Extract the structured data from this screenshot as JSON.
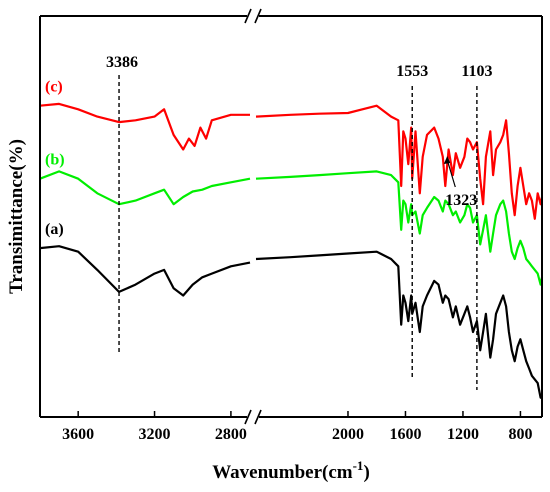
{
  "chart_data": {
    "type": "line",
    "xlabel_main": "Wavenumber(cm",
    "xlabel_sup": "-1",
    "xlabel_close": ")",
    "ylabel": "Transimittance(%)",
    "x_reversed": true,
    "x_break": [
      2700,
      2640
    ],
    "segments": [
      [
        3800,
        2700
      ],
      [
        2640,
        650
      ]
    ],
    "xticks": [
      3600,
      3200,
      2800,
      2000,
      1600,
      1200,
      800
    ],
    "ylim": [
      0,
      100
    ],
    "grid": false,
    "annotations": [
      {
        "text": "3386",
        "x": 3386
      },
      {
        "text": "1553",
        "x": 1553
      },
      {
        "text": "1103",
        "x": 1103
      },
      {
        "text": "1323",
        "x": 1323
      }
    ],
    "series": [
      {
        "name": "(c)",
        "color": "#ff0000",
        "points": [
          [
            3800,
            82
          ],
          [
            3700,
            82.5
          ],
          [
            3600,
            81
          ],
          [
            3500,
            79
          ],
          [
            3386,
            77.5
          ],
          [
            3300,
            78
          ],
          [
            3200,
            79
          ],
          [
            3150,
            81
          ],
          [
            3100,
            74
          ],
          [
            3050,
            70
          ],
          [
            3020,
            73
          ],
          [
            2990,
            71
          ],
          [
            2960,
            76
          ],
          [
            2930,
            73
          ],
          [
            2900,
            78
          ],
          [
            2800,
            79.5
          ],
          [
            2700,
            79.5
          ],
          [
            2640,
            79
          ],
          [
            2400,
            79.5
          ],
          [
            2200,
            79.8
          ],
          [
            2000,
            80
          ],
          [
            1900,
            81
          ],
          [
            1800,
            82
          ],
          [
            1700,
            79
          ],
          [
            1650,
            78
          ],
          [
            1630,
            60
          ],
          [
            1615,
            75
          ],
          [
            1600,
            73
          ],
          [
            1580,
            66
          ],
          [
            1560,
            76
          ],
          [
            1553,
            62
          ],
          [
            1530,
            75
          ],
          [
            1500,
            58
          ],
          [
            1480,
            68
          ],
          [
            1450,
            74
          ],
          [
            1400,
            76
          ],
          [
            1370,
            73
          ],
          [
            1340,
            68
          ],
          [
            1323,
            60
          ],
          [
            1300,
            70
          ],
          [
            1270,
            63
          ],
          [
            1250,
            69
          ],
          [
            1220,
            65
          ],
          [
            1190,
            68
          ],
          [
            1170,
            73
          ],
          [
            1150,
            72
          ],
          [
            1130,
            70
          ],
          [
            1103,
            72
          ],
          [
            1080,
            62
          ],
          [
            1060,
            55
          ],
          [
            1040,
            68
          ],
          [
            1010,
            75
          ],
          [
            990,
            63
          ],
          [
            970,
            70
          ],
          [
            940,
            72
          ],
          [
            920,
            74
          ],
          [
            900,
            78
          ],
          [
            880,
            69
          ],
          [
            860,
            58
          ],
          [
            840,
            52
          ],
          [
            820,
            60
          ],
          [
            800,
            65
          ],
          [
            780,
            60
          ],
          [
            760,
            55
          ],
          [
            740,
            58
          ],
          [
            720,
            56
          ],
          [
            700,
            51
          ],
          [
            680,
            58
          ],
          [
            660,
            55
          ],
          [
            650,
            57
          ]
        ]
      },
      {
        "name": "(b)",
        "color": "#00ee00",
        "points": [
          [
            3800,
            62
          ],
          [
            3700,
            64
          ],
          [
            3600,
            62
          ],
          [
            3500,
            58
          ],
          [
            3386,
            55
          ],
          [
            3300,
            56
          ],
          [
            3200,
            58
          ],
          [
            3150,
            59
          ],
          [
            3100,
            55
          ],
          [
            3050,
            57
          ],
          [
            3000,
            58.5
          ],
          [
            2950,
            59
          ],
          [
            2900,
            60
          ],
          [
            2800,
            61
          ],
          [
            2700,
            62
          ],
          [
            2640,
            62
          ],
          [
            2400,
            62.5
          ],
          [
            2200,
            63
          ],
          [
            2000,
            63.5
          ],
          [
            1800,
            64
          ],
          [
            1700,
            63
          ],
          [
            1650,
            61
          ],
          [
            1630,
            48
          ],
          [
            1615,
            56
          ],
          [
            1600,
            55
          ],
          [
            1580,
            50
          ],
          [
            1560,
            55
          ],
          [
            1553,
            52
          ],
          [
            1530,
            53
          ],
          [
            1500,
            47
          ],
          [
            1480,
            52
          ],
          [
            1450,
            54
          ],
          [
            1400,
            57
          ],
          [
            1370,
            56
          ],
          [
            1340,
            53
          ],
          [
            1323,
            56
          ],
          [
            1300,
            55
          ],
          [
            1270,
            52
          ],
          [
            1250,
            53
          ],
          [
            1220,
            50
          ],
          [
            1190,
            52
          ],
          [
            1170,
            55
          ],
          [
            1150,
            54
          ],
          [
            1130,
            50
          ],
          [
            1103,
            52
          ],
          [
            1080,
            44
          ],
          [
            1060,
            48
          ],
          [
            1040,
            52
          ],
          [
            1010,
            42
          ],
          [
            990,
            47
          ],
          [
            970,
            52
          ],
          [
            940,
            55
          ],
          [
            920,
            56
          ],
          [
            900,
            53
          ],
          [
            880,
            47
          ],
          [
            860,
            42
          ],
          [
            840,
            40
          ],
          [
            820,
            43
          ],
          [
            800,
            45
          ],
          [
            780,
            43
          ],
          [
            760,
            40
          ],
          [
            740,
            39
          ],
          [
            720,
            38
          ],
          [
            700,
            37
          ],
          [
            680,
            36
          ],
          [
            660,
            33
          ],
          [
            650,
            35
          ]
        ]
      },
      {
        "name": "(a)",
        "color": "#000000",
        "points": [
          [
            3800,
            43
          ],
          [
            3700,
            43.5
          ],
          [
            3600,
            42
          ],
          [
            3500,
            37
          ],
          [
            3386,
            31
          ],
          [
            3300,
            33
          ],
          [
            3200,
            36
          ],
          [
            3150,
            37
          ],
          [
            3100,
            32
          ],
          [
            3050,
            30
          ],
          [
            3000,
            33
          ],
          [
            2950,
            35
          ],
          [
            2900,
            36
          ],
          [
            2800,
            38
          ],
          [
            2700,
            39
          ],
          [
            2640,
            40
          ],
          [
            2400,
            40.5
          ],
          [
            2200,
            41
          ],
          [
            2000,
            41.5
          ],
          [
            1800,
            42
          ],
          [
            1700,
            40
          ],
          [
            1650,
            38
          ],
          [
            1630,
            22
          ],
          [
            1615,
            30
          ],
          [
            1600,
            28
          ],
          [
            1580,
            23
          ],
          [
            1560,
            30
          ],
          [
            1553,
            25
          ],
          [
            1530,
            28
          ],
          [
            1500,
            20
          ],
          [
            1480,
            27
          ],
          [
            1450,
            30
          ],
          [
            1400,
            34
          ],
          [
            1370,
            33
          ],
          [
            1340,
            28
          ],
          [
            1323,
            30
          ],
          [
            1300,
            29
          ],
          [
            1270,
            24
          ],
          [
            1250,
            27
          ],
          [
            1220,
            22
          ],
          [
            1190,
            25
          ],
          [
            1170,
            27
          ],
          [
            1150,
            24
          ],
          [
            1130,
            20
          ],
          [
            1103,
            23
          ],
          [
            1080,
            15
          ],
          [
            1060,
            20
          ],
          [
            1040,
            25
          ],
          [
            1010,
            13
          ],
          [
            990,
            18
          ],
          [
            970,
            25
          ],
          [
            940,
            28
          ],
          [
            920,
            30
          ],
          [
            900,
            27
          ],
          [
            880,
            20
          ],
          [
            860,
            15
          ],
          [
            840,
            12
          ],
          [
            820,
            16
          ],
          [
            800,
            18
          ],
          [
            780,
            15
          ],
          [
            760,
            12
          ],
          [
            740,
            10
          ],
          [
            720,
            8
          ],
          [
            700,
            7
          ],
          [
            680,
            6
          ],
          [
            660,
            2
          ],
          [
            650,
            3
          ]
        ]
      }
    ]
  }
}
